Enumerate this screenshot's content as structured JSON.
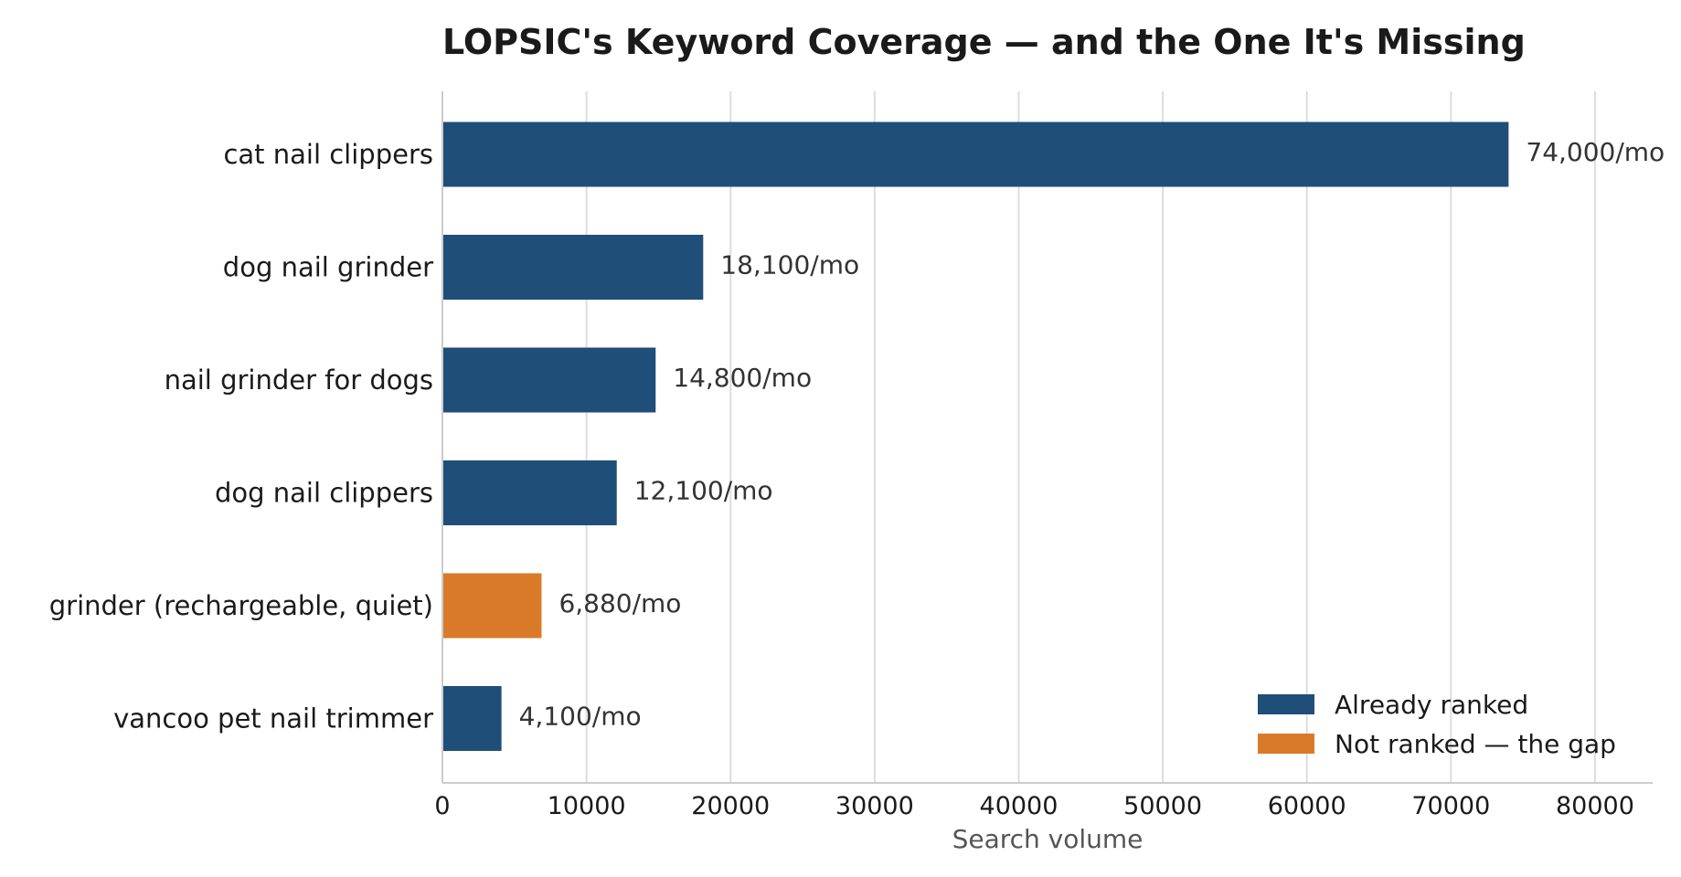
{
  "chart_data": {
    "type": "bar",
    "orientation": "horizontal",
    "title": "LOPSIC's Keyword Coverage — and the One It's Missing",
    "xlabel": "Search volume",
    "ylabel": "",
    "xlim": [
      0,
      84000
    ],
    "xticks": [
      0,
      10000,
      20000,
      30000,
      40000,
      50000,
      60000,
      70000,
      80000
    ],
    "xtick_labels": [
      "0",
      "10000",
      "20000",
      "30000",
      "40000",
      "50000",
      "60000",
      "70000",
      "80000"
    ],
    "grid": "vertical",
    "categories": [
      "cat nail clippers",
      "dog nail grinder",
      "nail grinder for dogs",
      "dog nail clippers",
      "grinder (rechargeable, quiet)",
      "vancoo pet nail trimmer"
    ],
    "values": [
      74000,
      18100,
      14800,
      12100,
      6880,
      4100
    ],
    "data_labels": [
      "74,000/mo",
      "18,100/mo",
      "14,800/mo",
      "12,100/mo",
      "6,880/mo",
      "4,100/mo"
    ],
    "groups": [
      "Already ranked",
      "Already ranked",
      "Already ranked",
      "Already ranked",
      "Not ranked — the gap",
      "Already ranked"
    ],
    "legend": {
      "placement": "lower-right",
      "entries": [
        {
          "name": "Already ranked",
          "color": "#1f4e79"
        },
        {
          "name": "Not ranked — the gap",
          "color": "#d97a29"
        }
      ]
    },
    "colors": {
      "Already ranked": "#1f4e79",
      "Not ranked — the gap": "#d97a29"
    }
  }
}
